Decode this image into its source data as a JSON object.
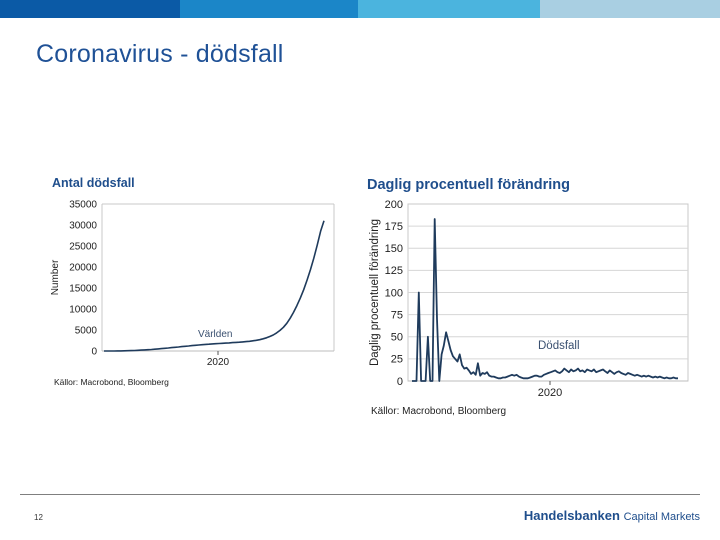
{
  "slide": {
    "title": "Coronavirus - dödsfall",
    "page_number": "12",
    "top_bar_colors": [
      "#0b5aa6",
      "#1b86c8",
      "#4bb4de",
      "#a9cfe2"
    ]
  },
  "footer": {
    "brand": "Handelsbanken",
    "brand_suffix": "Capital Markets"
  },
  "chart_data": [
    {
      "type": "line",
      "title": "Antal dödsfall",
      "ylabel": "Number",
      "xlabel": "",
      "x_tick_label": "2020",
      "y_ticks": [
        "35000",
        "30000",
        "25000",
        "20000",
        "15000",
        "10000",
        "5000",
        "0"
      ],
      "ylim": [
        0,
        35000
      ],
      "grid": false,
      "annotation": "Världen",
      "source": "Källor: Macrobond, Bloomberg",
      "line_color": "#1f3b5c",
      "series": [
        {
          "name": "Världen",
          "values": [
            0,
            0,
            0,
            10,
            20,
            30,
            50,
            80,
            100,
            130,
            170,
            210,
            260,
            300,
            360,
            420,
            490,
            560,
            640,
            720,
            800,
            880,
            960,
            1040,
            1120,
            1200,
            1280,
            1360,
            1440,
            1500,
            1560,
            1620,
            1680,
            1740,
            1790,
            1840,
            1890,
            1940,
            1990,
            2040,
            2100,
            2160,
            2230,
            2320,
            2420,
            2550,
            2700,
            2900,
            3150,
            3450,
            3800,
            4300,
            4900,
            5650,
            6600,
            7800,
            9200,
            10800,
            12600,
            14600,
            16900,
            19400,
            22100,
            25200,
            28500,
            31000
          ]
        }
      ]
    },
    {
      "type": "line",
      "title": "Daglig procentuell förändring",
      "ylabel": "Daglig procentuell förändring",
      "xlabel": "",
      "x_tick_label": "2020",
      "y_ticks": [
        "200",
        "175",
        "150",
        "125",
        "100",
        "75",
        "50",
        "25",
        "0"
      ],
      "ylim": [
        0,
        200
      ],
      "grid": true,
      "annotation": "Dödsfall",
      "source": "Källor: Macrobond, Bloomberg",
      "line_color": "#1f3b5c",
      "series": [
        {
          "name": "Dödsfall",
          "values": [
            0,
            0,
            0,
            100,
            0,
            0,
            0,
            50,
            0,
            0,
            183,
            70,
            0,
            30,
            40,
            55,
            45,
            35,
            28,
            25,
            22,
            30,
            18,
            14,
            15,
            12,
            8,
            10,
            7,
            20,
            6,
            9,
            8,
            10,
            6,
            5,
            5,
            4,
            3,
            3,
            4,
            4,
            5,
            6,
            7,
            6,
            7,
            5,
            4,
            3,
            3,
            3,
            4,
            5,
            6,
            6,
            5,
            5,
            7,
            8,
            9,
            10,
            11,
            12,
            10,
            9,
            11,
            14,
            12,
            10,
            13,
            11,
            12,
            14,
            11,
            12,
            10,
            13,
            12,
            11,
            13,
            10,
            11,
            12,
            13,
            11,
            9,
            12,
            10,
            8,
            10,
            11,
            9,
            8,
            7,
            9,
            8,
            7,
            6,
            7,
            6,
            5,
            6,
            5,
            6,
            5,
            4,
            5,
            4,
            5,
            4,
            3,
            4,
            3,
            3,
            4,
            3,
            3
          ]
        }
      ]
    }
  ]
}
